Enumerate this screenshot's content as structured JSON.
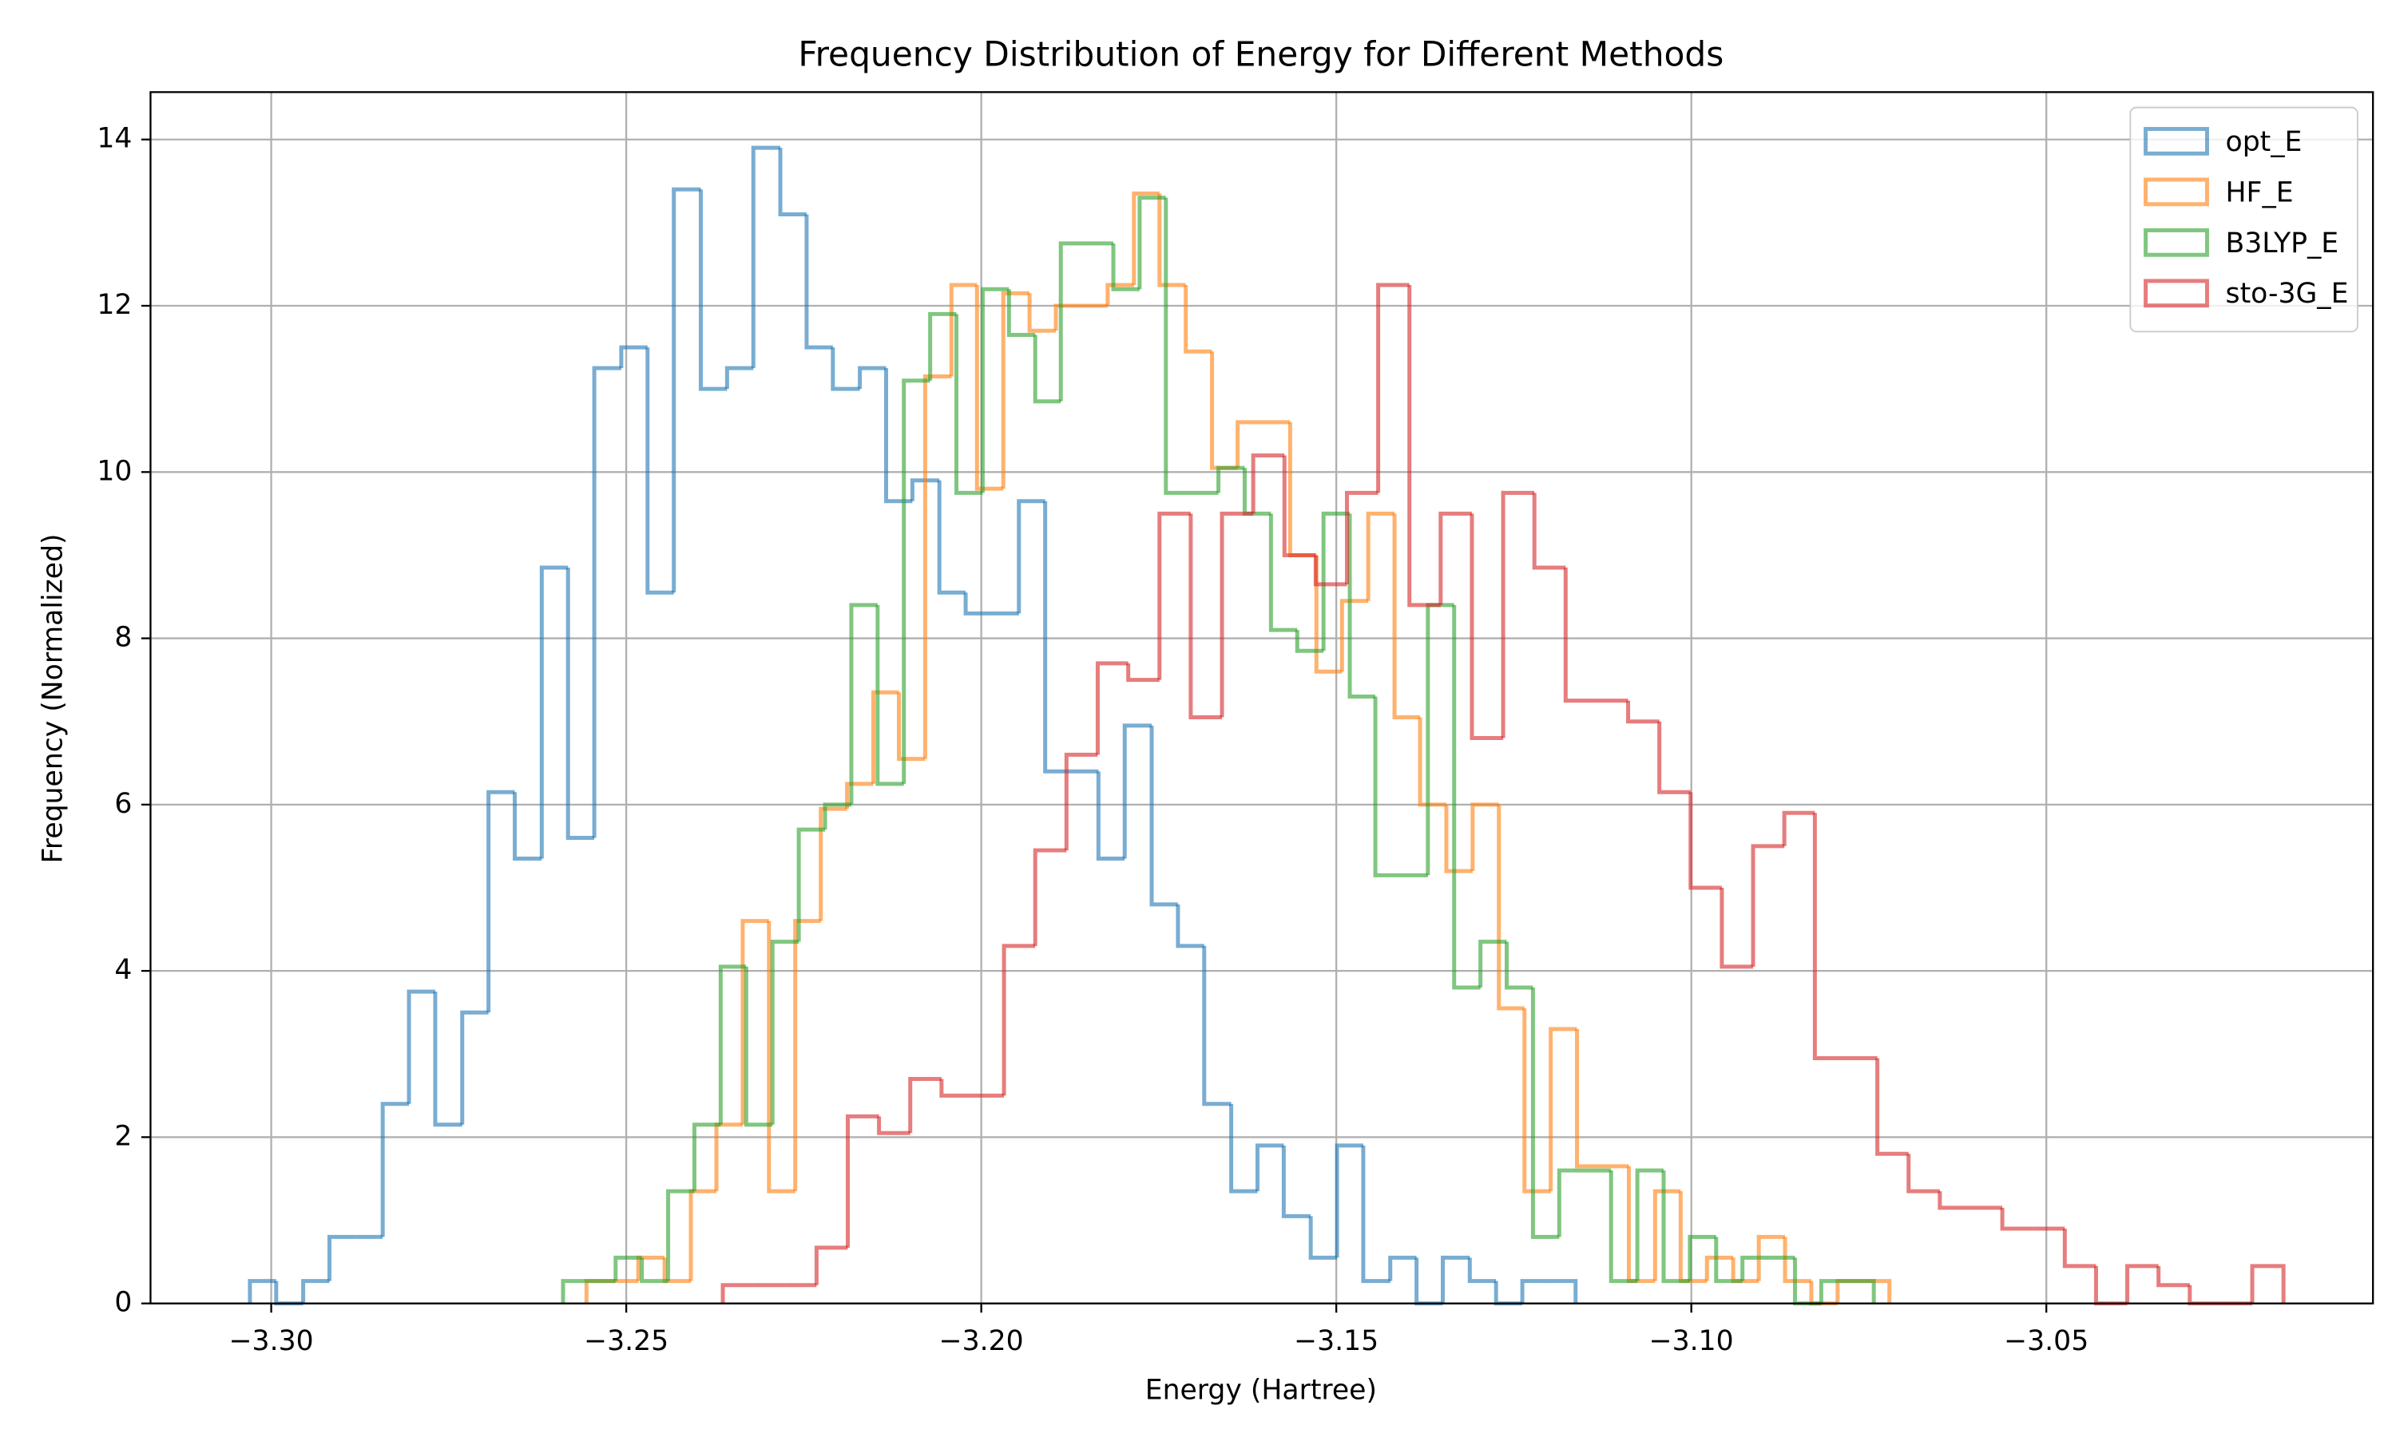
{
  "chart_data": {
    "type": "histogram-step",
    "title": "Frequency Distribution of Energy for Different Methods",
    "x_label": "Energy (Hartree)",
    "y_label": "Frequency (Normalized)",
    "xlim": [
      -3.317,
      -3.004
    ],
    "ylim": [
      0,
      14.57
    ],
    "xticks": [
      {
        "value": -3.3,
        "label": "−3.30"
      },
      {
        "value": -3.25,
        "label": "−3.25"
      },
      {
        "value": -3.2,
        "label": "−3.20"
      },
      {
        "value": -3.15,
        "label": "−3.15"
      },
      {
        "value": -3.1,
        "label": "−3.10"
      },
      {
        "value": -3.05,
        "label": "−3.05"
      }
    ],
    "yticks": [
      0,
      2,
      4,
      6,
      8,
      10,
      12,
      14
    ],
    "grid": true,
    "legend": "upper right",
    "series": [
      {
        "name": "opt_E",
        "color": "#1f77b4",
        "bins": [
          -3.303,
          -3.2993,
          -3.2955,
          -3.2918,
          -3.2881,
          -3.2843,
          -3.2806,
          -3.2769,
          -3.2731,
          -3.2694,
          -3.2657,
          -3.2619,
          -3.2582,
          -3.2545,
          -3.2507,
          -3.247,
          -3.2433,
          -3.2395,
          -3.2358,
          -3.2321,
          -3.2283,
          -3.2246,
          -3.2209,
          -3.2171,
          -3.2134,
          -3.2097,
          -3.2059,
          -3.2022,
          -3.1985,
          -3.1947,
          -3.191,
          -3.1873,
          -3.1835,
          -3.1798,
          -3.176,
          -3.1723,
          -3.1686,
          -3.1648,
          -3.1611,
          -3.1574,
          -3.1536,
          -3.1499,
          -3.1462,
          -3.1424,
          -3.1387,
          -3.135,
          -3.1312,
          -3.1275,
          -3.1238,
          -3.12,
          -3.1163
        ],
        "values": [
          0.27,
          0,
          0.27,
          0.8,
          0.8,
          2.4,
          3.75,
          2.15,
          3.5,
          6.15,
          5.35,
          8.85,
          5.6,
          11.25,
          11.5,
          8.55,
          13.4,
          11.0,
          11.25,
          13.9,
          13.1,
          11.5,
          11.0,
          11.25,
          9.65,
          9.9,
          8.55,
          8.3,
          8.3,
          9.65,
          6.4,
          6.4,
          5.35,
          6.95,
          4.8,
          4.3,
          2.4,
          1.35,
          1.9,
          1.05,
          0.55,
          1.9,
          0.27,
          0.55,
          0,
          0.55,
          0.27,
          0,
          0.27,
          0.27
        ]
      },
      {
        "name": "HF_E",
        "color": "#ff7f0e",
        "bins": [
          -3.2556,
          -3.2519,
          -3.2483,
          -3.2446,
          -3.2409,
          -3.2373,
          -3.2336,
          -3.2299,
          -3.2262,
          -3.2226,
          -3.2189,
          -3.2152,
          -3.2116,
          -3.2079,
          -3.2042,
          -3.2006,
          -3.1969,
          -3.1932,
          -3.1895,
          -3.1859,
          -3.1822,
          -3.1785,
          -3.1749,
          -3.1712,
          -3.1675,
          -3.1639,
          -3.1602,
          -3.1565,
          -3.1528,
          -3.1492,
          -3.1455,
          -3.1418,
          -3.1382,
          -3.1345,
          -3.1308,
          -3.1271,
          -3.1235,
          -3.1198,
          -3.1161,
          -3.1125,
          -3.1088,
          -3.1051,
          -3.1015,
          -3.0978,
          -3.0941,
          -3.0905,
          -3.0868,
          -3.0831,
          -3.0794,
          -3.0758,
          -3.0721
        ],
        "values": [
          0.27,
          0.27,
          0.55,
          0.27,
          1.35,
          2.15,
          4.6,
          1.35,
          4.6,
          5.95,
          6.25,
          7.35,
          6.55,
          11.15,
          12.25,
          9.8,
          12.15,
          11.7,
          12.0,
          12.0,
          12.25,
          13.35,
          12.25,
          11.45,
          10.05,
          10.6,
          10.6,
          9.0,
          7.6,
          8.45,
          9.5,
          7.05,
          6.0,
          5.2,
          6.0,
          3.55,
          1.35,
          3.3,
          1.65,
          1.65,
          0.27,
          1.35,
          0.27,
          0.55,
          0.27,
          0.8,
          0.27,
          0,
          0.27,
          0.27
        ]
      },
      {
        "name": "B3LYP_E",
        "color": "#2ca02c",
        "bins": [
          -3.2589,
          -3.2552,
          -3.2515,
          -3.2478,
          -3.2441,
          -3.2404,
          -3.2367,
          -3.2331,
          -3.2294,
          -3.2257,
          -3.222,
          -3.2183,
          -3.2146,
          -3.2109,
          -3.2072,
          -3.2035,
          -3.1998,
          -3.1961,
          -3.1924,
          -3.1888,
          -3.1851,
          -3.1814,
          -3.1777,
          -3.174,
          -3.1703,
          -3.1666,
          -3.1629,
          -3.1592,
          -3.1555,
          -3.1518,
          -3.1481,
          -3.1445,
          -3.1408,
          -3.1371,
          -3.1334,
          -3.1297,
          -3.126,
          -3.1223,
          -3.1186,
          -3.1149,
          -3.1113,
          -3.1076,
          -3.1039,
          -3.1002,
          -3.0965,
          -3.0928,
          -3.0891,
          -3.0854,
          -3.0817,
          -3.078,
          -3.0743
        ],
        "values": [
          0.27,
          0.27,
          0.55,
          0.27,
          1.35,
          2.15,
          4.05,
          2.15,
          4.35,
          5.7,
          6.0,
          8.4,
          6.25,
          11.1,
          11.9,
          9.75,
          12.2,
          11.65,
          10.85,
          12.75,
          12.75,
          12.2,
          13.3,
          9.75,
          9.75,
          10.05,
          9.5,
          8.1,
          7.85,
          9.5,
          7.3,
          5.15,
          5.15,
          8.4,
          3.8,
          4.35,
          3.8,
          0.8,
          1.6,
          1.6,
          0.27,
          1.6,
          0.27,
          0.8,
          0.27,
          0.55,
          0.55,
          0,
          0.27,
          0.27
        ]
      },
      {
        "name": "sto-3G_E",
        "color": "#d62728",
        "bins": [
          -3.2364,
          -3.232,
          -3.2276,
          -3.2232,
          -3.2188,
          -3.2144,
          -3.21,
          -3.2056,
          -3.2012,
          -3.1968,
          -3.1924,
          -3.188,
          -3.1836,
          -3.1793,
          -3.1749,
          -3.1705,
          -3.1661,
          -3.1617,
          -3.1573,
          -3.1529,
          -3.1485,
          -3.1441,
          -3.1397,
          -3.1353,
          -3.1309,
          -3.1265,
          -3.1221,
          -3.1177,
          -3.1133,
          -3.1089,
          -3.1045,
          -3.1001,
          -3.0957,
          -3.0913,
          -3.0869,
          -3.0826,
          -3.0782,
          -3.0738,
          -3.0694,
          -3.065,
          -3.0606,
          -3.0562,
          -3.0518,
          -3.0474,
          -3.043,
          -3.0386,
          -3.0342,
          -3.0298,
          -3.0254,
          -3.021,
          -3.0166
        ],
        "values": [
          0.22,
          0.22,
          0.22,
          0.67,
          2.25,
          2.05,
          2.7,
          2.5,
          2.5,
          4.3,
          5.45,
          6.6,
          7.7,
          7.5,
          9.5,
          7.05,
          9.5,
          10.2,
          9.0,
          8.65,
          9.75,
          12.25,
          8.4,
          9.5,
          6.8,
          9.75,
          8.85,
          7.25,
          7.25,
          7.0,
          6.15,
          5.0,
          4.05,
          5.5,
          5.9,
          2.95,
          2.95,
          1.8,
          1.35,
          1.15,
          1.15,
          0.9,
          0.9,
          0.45,
          0,
          0.45,
          0.22,
          0,
          0,
          0.45
        ]
      }
    ]
  }
}
